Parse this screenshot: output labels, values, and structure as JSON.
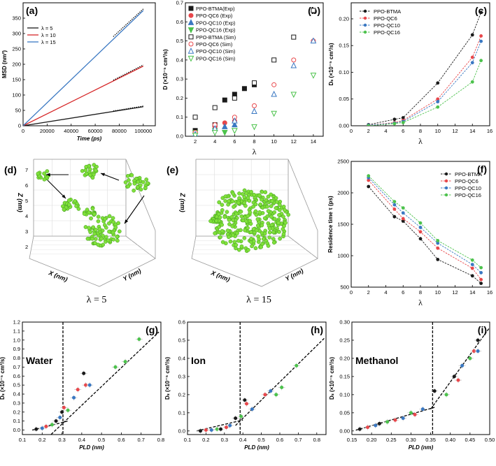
{
  "chart_data": [
    {
      "id": "a",
      "tag": "(a)",
      "type": "line",
      "xlabel": "Time (ps)",
      "ylabel": "MSD (nm²)",
      "xlim": [
        0,
        110000
      ],
      "ylim": [
        0,
        400
      ],
      "xticks": [
        0,
        20000,
        40000,
        60000,
        80000,
        100000
      ],
      "xtick_labels": [
        "0",
        "20000",
        "40000",
        "60000",
        "80000",
        "100000"
      ],
      "yticks": [
        0,
        50,
        100,
        150,
        200,
        250,
        300,
        350
      ],
      "ytick_labels": [
        "0",
        "50",
        "100",
        "150",
        "200",
        "250",
        "300",
        "350"
      ],
      "series": [
        {
          "name": "λ = 5",
          "color": "#1a1a1a",
          "x": [
            0,
            100000
          ],
          "y": [
            0,
            62
          ],
          "fit_x": [
            75000,
            100000
          ],
          "fit_y": [
            48,
            64
          ]
        },
        {
          "name": "λ = 10",
          "color": "#d62728",
          "x": [
            0,
            100000
          ],
          "y": [
            0,
            194
          ],
          "fit_x": [
            75000,
            100000
          ],
          "fit_y": [
            148,
            198
          ]
        },
        {
          "name": "λ = 15",
          "color": "#3a78c2",
          "x": [
            0,
            100000
          ],
          "y": [
            0,
            375
          ],
          "fit_x": [
            75000,
            100000
          ],
          "fit_y": [
            290,
            380
          ]
        }
      ]
    },
    {
      "id": "b",
      "tag": "(b)",
      "type": "scatter",
      "xlabel": "λ",
      "ylabel": "D (×10⁻⁵ cm²/s)",
      "xlim": [
        1,
        15
      ],
      "ylim": [
        0,
        0.7
      ],
      "xticks": [
        2,
        4,
        6,
        8,
        10,
        12,
        14
      ],
      "xtick_labels": [
        "2",
        "4",
        "6",
        "8",
        "10",
        "12",
        "14"
      ],
      "yticks": [
        0,
        0.1,
        0.2,
        0.3,
        0.4,
        0.5,
        0.6,
        0.7
      ],
      "ytick_labels": [
        "0.0",
        "0.1",
        "0.2",
        "0.3",
        "0.4",
        "0.5",
        "0.6",
        "0.7"
      ],
      "series": [
        {
          "name": "PPO-BTMA(Exp)",
          "color": "#1a1a1a",
          "marker": "square",
          "filled": true,
          "x": [
            2,
            4,
            5,
            6,
            7,
            8
          ],
          "y": [
            0.03,
            0.06,
            0.19,
            0.22,
            0.25,
            0.27
          ]
        },
        {
          "name": "PPO-QC6 (Exp)",
          "color": "#e8474b",
          "marker": "circle",
          "filled": true,
          "x": [
            2,
            4,
            5,
            6
          ],
          "y": [
            0.02,
            0.05,
            0.07,
            0.08
          ]
        },
        {
          "name": "PPO-QC10 (Exp)",
          "color": "#3a78c2",
          "marker": "triangle-up",
          "filled": true,
          "x": [
            2,
            4,
            5,
            6
          ],
          "y": [
            0.01,
            0.04,
            0.05,
            0.06
          ]
        },
        {
          "name": "PPO-QC16 (Exp)",
          "color": "#4cc24c",
          "marker": "triangle-down",
          "filled": true,
          "x": [
            2,
            4,
            5,
            6
          ],
          "y": [
            0.02,
            0.03,
            0.02,
            0.03
          ]
        },
        {
          "name": "PPO-BTMA (Sim)",
          "color": "#1a1a1a",
          "marker": "square",
          "filled": false,
          "x": [
            2,
            4,
            6,
            8,
            10,
            12,
            14
          ],
          "y": [
            0.1,
            0.15,
            0.2,
            0.28,
            0.4,
            0.52,
            0.66
          ]
        },
        {
          "name": "PPO-QC6 (Sim)",
          "color": "#e8474b",
          "marker": "circle",
          "filled": false,
          "x": [
            2,
            4,
            6,
            8,
            10,
            12,
            14
          ],
          "y": [
            0.02,
            0.06,
            0.1,
            0.16,
            0.27,
            0.4,
            0.5
          ]
        },
        {
          "name": "PPO-QC10 (Sim)",
          "color": "#3a78c2",
          "marker": "triangle-up",
          "filled": false,
          "x": [
            2,
            4,
            6,
            8,
            10,
            12,
            14
          ],
          "y": [
            0.01,
            0.04,
            0.08,
            0.13,
            0.22,
            0.37,
            0.5
          ]
        },
        {
          "name": "PPO-QC16 (Sim)",
          "color": "#4cc24c",
          "marker": "triangle-down",
          "filled": false,
          "x": [
            2,
            4,
            6,
            8,
            10,
            12,
            14
          ],
          "y": [
            0.005,
            0.02,
            0.03,
            0.05,
            0.12,
            0.22,
            0.32
          ]
        }
      ]
    },
    {
      "id": "c",
      "tag": "(c)",
      "type": "line",
      "xlabel": "λ",
      "ylabel": "Dₛ (×10⁻⁵ cm²/s)",
      "xlim": [
        0,
        16
      ],
      "ylim": [
        0,
        0.23
      ],
      "xticks": [
        0,
        2,
        4,
        6,
        8,
        10,
        12,
        14,
        16
      ],
      "xtick_labels": [
        "0",
        "2",
        "4",
        "6",
        "8",
        "10",
        "12",
        "14",
        "16"
      ],
      "yticks": [
        0,
        0.05,
        0.1,
        0.15,
        0.2
      ],
      "ytick_labels": [
        "0.00",
        "0.05",
        "0.10",
        "0.15",
        "0.20"
      ],
      "series": [
        {
          "name": "PPO-BTMA",
          "color": "#1a1a1a",
          "x": [
            2,
            5,
            6,
            10,
            14,
            15
          ],
          "y": [
            0.002,
            0.012,
            0.015,
            0.08,
            0.17,
            0.212
          ]
        },
        {
          "name": "PPO-QC6",
          "color": "#e8474b",
          "x": [
            2,
            5,
            6,
            10,
            14,
            15
          ],
          "y": [
            0.001,
            0.006,
            0.01,
            0.05,
            0.128,
            0.168
          ]
        },
        {
          "name": "PPO-QC10",
          "color": "#3a78c2",
          "x": [
            2,
            5,
            6,
            10,
            14,
            15
          ],
          "y": [
            0.001,
            0.005,
            0.008,
            0.045,
            0.118,
            0.158
          ]
        },
        {
          "name": "PPO-QC16",
          "color": "#4cc24c",
          "x": [
            2,
            5,
            6,
            10,
            14,
            15
          ],
          "y": [
            0.0,
            0.004,
            0.006,
            0.035,
            0.082,
            0.122
          ]
        }
      ]
    },
    {
      "id": "f",
      "tag": "(f)",
      "type": "line",
      "xlabel": "λ",
      "ylabel": "Residence time τ (ps)",
      "xlim": [
        0,
        16
      ],
      "ylim": [
        500,
        2500
      ],
      "xticks": [
        0,
        2,
        4,
        6,
        8,
        10,
        12,
        14,
        16
      ],
      "xtick_labels": [
        "0",
        "2",
        "4",
        "6",
        "8",
        "10",
        "12",
        "14",
        "16"
      ],
      "yticks": [
        500,
        1000,
        1500,
        2000,
        2500
      ],
      "ytick_labels": [
        "500",
        "1000",
        "1500",
        "2000",
        "2500"
      ],
      "series": [
        {
          "name": "PPO-BTMA",
          "color": "#1a1a1a",
          "x": [
            2,
            5,
            6,
            8,
            10,
            14,
            15
          ],
          "y": [
            2100,
            1620,
            1550,
            1270,
            940,
            680,
            560
          ]
        },
        {
          "name": "PPO-QC6",
          "color": "#e8474b",
          "x": [
            2,
            5,
            6,
            8,
            10,
            14,
            15
          ],
          "y": [
            2200,
            1740,
            1590,
            1380,
            1120,
            800,
            620
          ]
        },
        {
          "name": "PPO-QC10",
          "color": "#3a78c2",
          "x": [
            2,
            5,
            6,
            8,
            10,
            14,
            15
          ],
          "y": [
            2240,
            1810,
            1680,
            1450,
            1200,
            860,
            730
          ]
        },
        {
          "name": "PPO-QC16",
          "color": "#4cc24c",
          "x": [
            2,
            5,
            6,
            8,
            10,
            14,
            15
          ],
          "y": [
            2270,
            1860,
            1760,
            1520,
            1240,
            930,
            810
          ]
        }
      ]
    },
    {
      "id": "g",
      "tag": "(g)",
      "type": "scatter",
      "annotation": "Water",
      "xlabel": "PLD (nm)",
      "ylabel": "Dₛ (×10⁻⁵ cm²/s)",
      "xlim": [
        0.1,
        0.8
      ],
      "ylim": [
        -0.05,
        1.2
      ],
      "xticks": [
        0.1,
        0.2,
        0.3,
        0.4,
        0.5,
        0.6,
        0.7,
        0.8
      ],
      "xtick_labels": [
        "0.1",
        "0.2",
        "0.3",
        "0.4",
        "0.5",
        "0.6",
        "0.7",
        "0.8"
      ],
      "yticks": [
        0,
        0.1,
        0.2,
        0.3,
        0.4,
        0.5,
        0.6,
        0.7,
        0.8,
        0.9,
        1.0,
        1.1,
        1.2
      ],
      "ytick_labels": [
        "0.0",
        "0.1",
        "0.2",
        "0.3",
        "0.4",
        "0.5",
        "0.6",
        "0.7",
        "0.8",
        "0.9",
        "1.0",
        "1.1",
        "1.2"
      ],
      "vline": 0.305,
      "fits": [
        {
          "x": [
            0.15,
            0.33
          ],
          "y": [
            0.0,
            0.1
          ]
        },
        {
          "x": [
            0.23,
            0.79
          ],
          "y": [
            -0.08,
            1.09
          ]
        }
      ],
      "points": [
        {
          "x": 0.17,
          "y": 0.01,
          "color": "#1a1a1a"
        },
        {
          "x": 0.2,
          "y": 0.02,
          "color": "#3a78c2"
        },
        {
          "x": 0.22,
          "y": 0.04,
          "color": "#e8474b"
        },
        {
          "x": 0.25,
          "y": 0.06,
          "color": "#4cc24c"
        },
        {
          "x": 0.27,
          "y": 0.1,
          "color": "#1a1a1a"
        },
        {
          "x": 0.29,
          "y": 0.14,
          "color": "#3a78c2"
        },
        {
          "x": 0.3,
          "y": 0.2,
          "color": "#1a1a1a"
        },
        {
          "x": 0.31,
          "y": 0.25,
          "color": "#e8474b"
        },
        {
          "x": 0.33,
          "y": 0.22,
          "color": "#4cc24c"
        },
        {
          "x": 0.36,
          "y": 0.36,
          "color": "#3a78c2"
        },
        {
          "x": 0.38,
          "y": 0.45,
          "color": "#e8474b"
        },
        {
          "x": 0.41,
          "y": 0.63,
          "color": "#1a1a1a"
        },
        {
          "x": 0.42,
          "y": 0.5,
          "color": "#e8474b"
        },
        {
          "x": 0.44,
          "y": 0.5,
          "color": "#3a78c2"
        },
        {
          "x": 0.57,
          "y": 0.7,
          "color": "#4cc24c"
        },
        {
          "x": 0.62,
          "y": 0.76,
          "color": "#4cc24c"
        },
        {
          "x": 0.69,
          "y": 1.01,
          "color": "#4cc24c"
        }
      ]
    },
    {
      "id": "h",
      "tag": "(h)",
      "type": "scatter",
      "annotation": "Ion",
      "xlabel": "PLD (nm)",
      "ylabel": "Dₛ (×10⁻⁵ cm²/s)",
      "xlim": [
        0.1,
        0.85
      ],
      "ylim": [
        -0.02,
        0.6
      ],
      "xticks": [
        0.1,
        0.2,
        0.3,
        0.4,
        0.5,
        0.6,
        0.7,
        0.8
      ],
      "xtick_labels": [
        "0.1",
        "0.2",
        "0.3",
        "0.4",
        "0.5",
        "0.6",
        "0.7",
        "0.8"
      ],
      "yticks": [
        0,
        0.1,
        0.2,
        0.3,
        0.4,
        0.5,
        0.6
      ],
      "ytick_labels": [
        "0.0",
        "0.1",
        "0.2",
        "0.3",
        "0.4",
        "0.5",
        "0.6"
      ],
      "vline": 0.385,
      "fits": [
        {
          "x": [
            0.15,
            0.4
          ],
          "y": [
            0.0,
            0.06
          ]
        },
        {
          "x": [
            0.36,
            0.84
          ],
          "y": [
            0.03,
            0.51
          ]
        }
      ],
      "points": [
        {
          "x": 0.17,
          "y": 0.0,
          "color": "#1a1a1a"
        },
        {
          "x": 0.2,
          "y": 0.005,
          "color": "#e8474b"
        },
        {
          "x": 0.23,
          "y": 0.005,
          "color": "#3a78c2"
        },
        {
          "x": 0.26,
          "y": 0.01,
          "color": "#4cc24c"
        },
        {
          "x": 0.28,
          "y": 0.01,
          "color": "#1a1a1a"
        },
        {
          "x": 0.31,
          "y": 0.02,
          "color": "#e8474b"
        },
        {
          "x": 0.33,
          "y": 0.03,
          "color": "#3a78c2"
        },
        {
          "x": 0.36,
          "y": 0.07,
          "color": "#1a1a1a"
        },
        {
          "x": 0.39,
          "y": 0.08,
          "color": "#4cc24c"
        },
        {
          "x": 0.41,
          "y": 0.17,
          "color": "#1a1a1a"
        },
        {
          "x": 0.42,
          "y": 0.15,
          "color": "#e8474b"
        },
        {
          "x": 0.45,
          "y": 0.12,
          "color": "#3a78c2"
        },
        {
          "x": 0.52,
          "y": 0.2,
          "color": "#e8474b"
        },
        {
          "x": 0.55,
          "y": 0.22,
          "color": "#3a78c2"
        },
        {
          "x": 0.58,
          "y": 0.2,
          "color": "#4cc24c"
        },
        {
          "x": 0.61,
          "y": 0.24,
          "color": "#4cc24c"
        },
        {
          "x": 0.69,
          "y": 0.36,
          "color": "#4cc24c"
        }
      ]
    },
    {
      "id": "i",
      "tag": "(i)",
      "type": "scatter",
      "annotation": "Methanol",
      "xlabel": "PLD (nm)",
      "ylabel": "Dₛ (×10⁻⁵ cm²/s)",
      "xlim": [
        0.15,
        0.5
      ],
      "ylim": [
        -0.01,
        0.3
      ],
      "xticks": [
        0.15,
        0.2,
        0.25,
        0.3,
        0.35,
        0.4,
        0.45,
        0.5
      ],
      "xtick_labels": [
        "0.15",
        "0.20",
        "0.25",
        "0.30",
        "0.35",
        "0.40",
        "0.45",
        "0.50"
      ],
      "yticks": [
        0,
        0.05,
        0.1,
        0.15,
        0.2,
        0.25,
        0.3
      ],
      "ytick_labels": [
        "0.00",
        "0.05",
        "0.10",
        "0.15",
        "0.20",
        "0.25",
        "0.30"
      ],
      "vline": 0.355,
      "fits": [
        {
          "x": [
            0.16,
            0.36
          ],
          "y": [
            0.002,
            0.065
          ]
        },
        {
          "x": [
            0.35,
            0.5
          ],
          "y": [
            0.06,
            0.285
          ]
        }
      ],
      "points": [
        {
          "x": 0.17,
          "y": 0.005,
          "color": "#1a1a1a"
        },
        {
          "x": 0.19,
          "y": 0.01,
          "color": "#e8474b"
        },
        {
          "x": 0.21,
          "y": 0.015,
          "color": "#3a78c2"
        },
        {
          "x": 0.22,
          "y": 0.02,
          "color": "#1a1a1a"
        },
        {
          "x": 0.24,
          "y": 0.025,
          "color": "#4cc24c"
        },
        {
          "x": 0.26,
          "y": 0.03,
          "color": "#e8474b"
        },
        {
          "x": 0.28,
          "y": 0.035,
          "color": "#3a78c2"
        },
        {
          "x": 0.3,
          "y": 0.05,
          "color": "#4cc24c"
        },
        {
          "x": 0.31,
          "y": 0.045,
          "color": "#e8474b"
        },
        {
          "x": 0.33,
          "y": 0.06,
          "color": "#3a78c2"
        },
        {
          "x": 0.36,
          "y": 0.11,
          "color": "#1a1a1a"
        },
        {
          "x": 0.39,
          "y": 0.1,
          "color": "#4cc24c"
        },
        {
          "x": 0.41,
          "y": 0.15,
          "color": "#1a1a1a"
        },
        {
          "x": 0.42,
          "y": 0.14,
          "color": "#e8474b"
        },
        {
          "x": 0.43,
          "y": 0.18,
          "color": "#3a78c2"
        },
        {
          "x": 0.45,
          "y": 0.2,
          "color": "#4cc24c"
        },
        {
          "x": 0.46,
          "y": 0.22,
          "color": "#e8474b"
        },
        {
          "x": 0.47,
          "y": 0.25,
          "color": "#1a1a1a"
        },
        {
          "x": 0.47,
          "y": 0.22,
          "color": "#3a78c2"
        }
      ]
    }
  ],
  "snapshots": [
    {
      "id": "d",
      "tag": "(d)",
      "caption": "λ = 5",
      "xlabel": "X (nm)",
      "ylabel": "Y (nm)",
      "zlabel": "Z (nm)",
      "zticks": [
        "2",
        "3",
        "4",
        "5",
        "6",
        "7"
      ]
    },
    {
      "id": "e",
      "tag": "(e)",
      "caption": "λ = 15",
      "xlabel": "X (nm)",
      "ylabel": "Y (nm)",
      "zlabel": "Z (nm)",
      "zticks": []
    }
  ],
  "colors": {
    "btma": "#1a1a1a",
    "qc6": "#e8474b",
    "qc10": "#3a78c2",
    "qc16": "#4cc24c",
    "cluster": "#7fe03a"
  }
}
